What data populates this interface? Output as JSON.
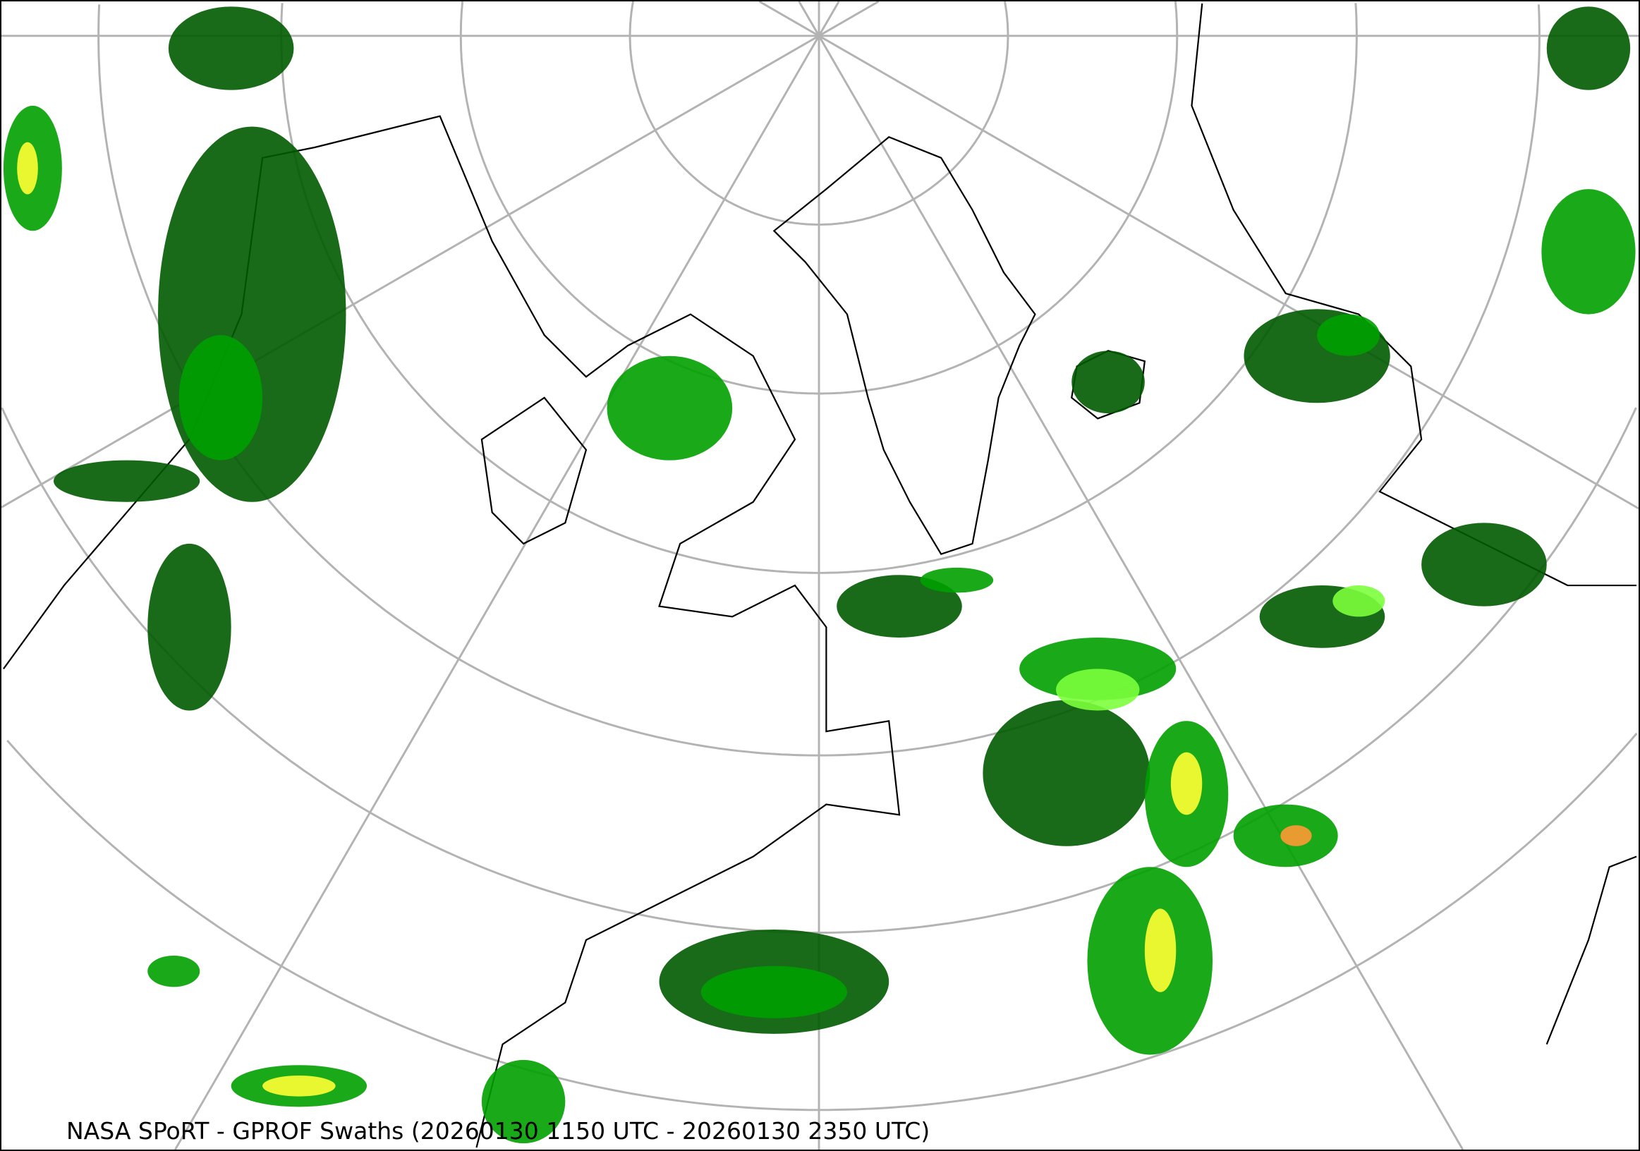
{
  "map": {
    "title": "NASA SPoRT - GPROF Swaths (20260130 1150 UTC - 20260130 2350 UTC)",
    "projection": "polar stereographic (north)",
    "graticule": true,
    "colors": {
      "graticule": "#b3b3b3",
      "coastline": "#000000",
      "precip_light": "#005a00",
      "precip_moderate": "#00a000",
      "precip_heavy": "#7cff3c",
      "precip_very_heavy": "#ffff33",
      "precip_extreme": "#ff9933"
    }
  }
}
